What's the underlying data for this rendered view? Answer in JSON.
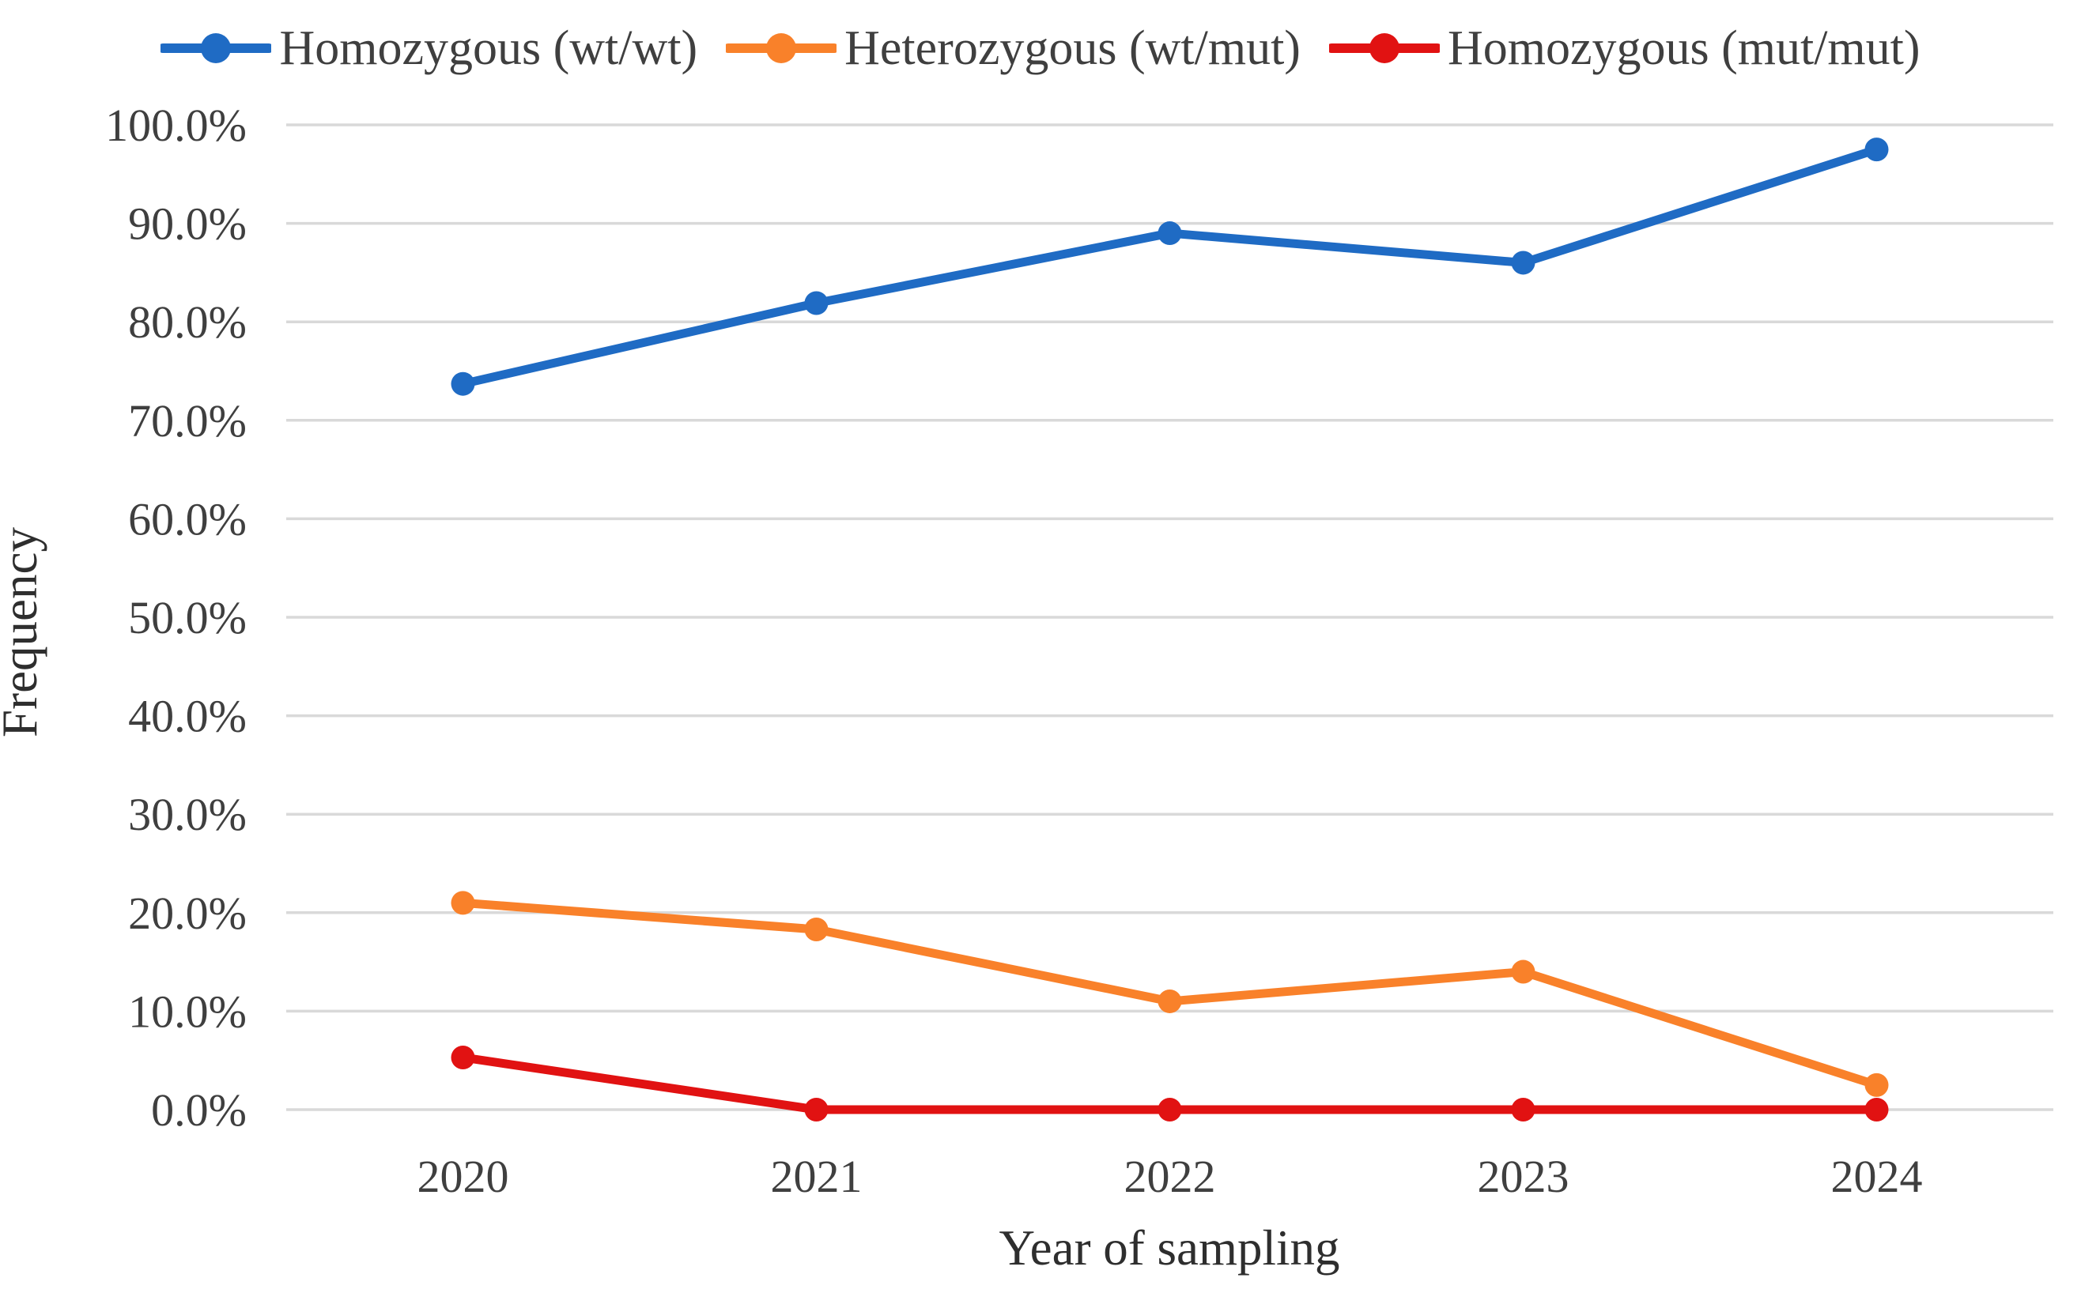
{
  "chart_data": {
    "type": "line",
    "categories": [
      "2020",
      "2021",
      "2022",
      "2023",
      "2024"
    ],
    "series": [
      {
        "name": "Homozygous (wt/wt)",
        "color": "#1F6BC4",
        "values": [
          73.7,
          81.9,
          89.0,
          86.0,
          97.5
        ]
      },
      {
        "name": "Heterozygous (wt/mut)",
        "color": "#F9812A",
        "values": [
          21.0,
          18.3,
          11.0,
          14.0,
          2.5
        ]
      },
      {
        "name": "Homozygous (mut/mut)",
        "color": "#E11212",
        "values": [
          5.3,
          0.0,
          0.0,
          0.0,
          0.0
        ]
      }
    ],
    "xlabel": "Year of sampling",
    "ylabel": "Frequency",
    "ylim": [
      0,
      100
    ],
    "y_ticks": [
      {
        "value": 0,
        "label": "0.0%"
      },
      {
        "value": 10,
        "label": "10.0%"
      },
      {
        "value": 20,
        "label": "20.0%"
      },
      {
        "value": 30,
        "label": "30.0%"
      },
      {
        "value": 40,
        "label": "40.0%"
      },
      {
        "value": 50,
        "label": "50.0%"
      },
      {
        "value": 60,
        "label": "60.0%"
      },
      {
        "value": 70,
        "label": "70.0%"
      },
      {
        "value": 80,
        "label": "80.0%"
      },
      {
        "value": 90,
        "label": "90.0%"
      },
      {
        "value": 100,
        "label": "100.0%"
      }
    ],
    "grid": "horizontal",
    "legend_position": "top",
    "marker": "circle"
  },
  "style": {
    "gridline_color": "#D9D9D9",
    "tick_color": "#3F3F3F",
    "title_color": "#2E2E2E",
    "background": "#FFFFFF"
  }
}
